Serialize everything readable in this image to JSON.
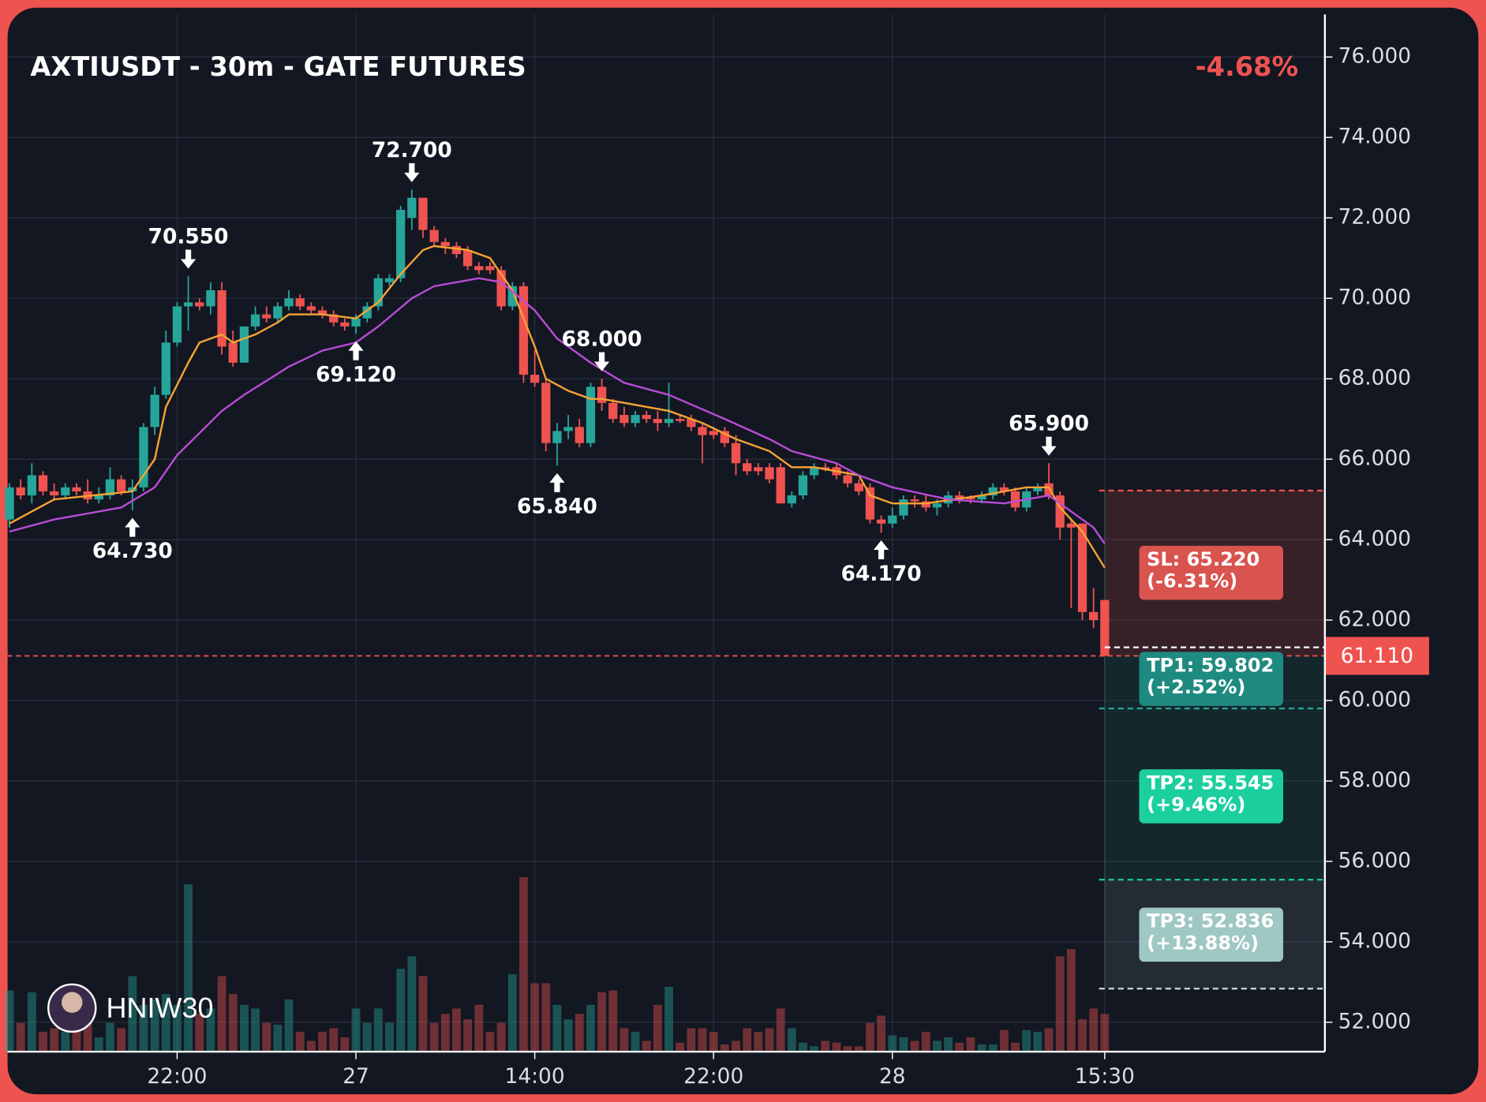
{
  "chart_data": {
    "type": "candlestick",
    "title": "AXTIUSDT - 30m - GATE FUTURES",
    "change_label": "-4.68%",
    "watermark": "HNIW30",
    "ylim": [
      51.27,
      77.06
    ],
    "yticks": [
      {
        "value": 52,
        "label": "52.000"
      },
      {
        "value": 54,
        "label": "54.000"
      },
      {
        "value": 56,
        "label": "56.000"
      },
      {
        "value": 58,
        "label": "58.000"
      },
      {
        "value": 60,
        "label": "60.000"
      },
      {
        "value": 62,
        "label": "62.000"
      },
      {
        "value": 64,
        "label": "64.000"
      },
      {
        "value": 66,
        "label": "66.000"
      },
      {
        "value": 68,
        "label": "68.000"
      },
      {
        "value": 70,
        "label": "70.000"
      },
      {
        "value": 72,
        "label": "72.000"
      },
      {
        "value": 74,
        "label": "74.000"
      },
      {
        "value": 76,
        "label": "76.000"
      }
    ],
    "xlim": [
      -0.17,
      117.7
    ],
    "xticks": [
      {
        "value": 15,
        "label": "22:00"
      },
      {
        "value": 31,
        "label": "27"
      },
      {
        "value": 47,
        "label": "14:00"
      },
      {
        "value": 63,
        "label": "22:00"
      },
      {
        "value": 79,
        "label": "28"
      },
      {
        "value": 98,
        "label": "15:30"
      }
    ],
    "grid": true,
    "up_color": "#26a69a",
    "down_color": "#ef5350",
    "open": [
      64.5,
      65.3,
      65.1,
      65.6,
      65.2,
      65.1,
      65.3,
      65.2,
      65.0,
      65.1,
      65.5,
      65.2,
      65.3,
      66.8,
      67.6,
      68.9,
      69.8,
      69.9,
      69.8,
      70.2,
      68.9,
      68.4,
      69.3,
      69.6,
      69.5,
      69.8,
      70.0,
      69.8,
      69.7,
      69.6,
      69.4,
      69.3,
      69.5,
      69.8,
      70.4,
      70.5,
      72.0,
      72.5,
      71.7,
      71.4,
      71.3,
      71.2,
      70.8,
      70.8,
      70.7,
      69.8,
      70.3,
      68.1,
      67.9,
      66.4,
      66.7,
      66.8,
      66.4,
      67.8,
      67.4,
      67.1,
      66.9,
      67.1,
      67.0,
      66.9,
      67.0,
      67.0,
      66.8,
      66.7,
      66.7,
      66.4,
      65.9,
      65.8,
      65.8,
      65.8,
      64.9,
      65.1,
      65.6,
      65.8,
      65.8,
      65.6,
      65.4,
      65.3,
      64.5,
      64.4,
      64.6,
      65.0,
      64.95,
      64.8,
      64.9,
      65.1,
      65.05,
      65.0,
      65.1,
      65.3,
      65.2,
      64.8,
      65.2,
      65.4,
      65.1,
      64.4,
      64.4,
      62.2,
      62.5
    ],
    "high": [
      65.4,
      65.5,
      65.9,
      65.7,
      65.4,
      65.4,
      65.4,
      65.5,
      65.3,
      65.8,
      65.6,
      65.5,
      66.9,
      67.8,
      69.2,
      69.9,
      70.55,
      70.0,
      70.4,
      70.4,
      69.2,
      69.3,
      69.8,
      69.8,
      69.9,
      70.2,
      70.1,
      69.9,
      69.8,
      69.7,
      69.5,
      69.6,
      69.9,
      70.6,
      70.6,
      72.3,
      72.7,
      72.5,
      71.8,
      71.5,
      71.4,
      71.3,
      70.9,
      70.9,
      70.8,
      70.4,
      70.4,
      68.7,
      68.0,
      66.9,
      67.1,
      67.0,
      67.9,
      68.0,
      67.5,
      67.3,
      67.2,
      67.2,
      67.2,
      67.9,
      67.1,
      67.1,
      66.9,
      66.8,
      66.8,
      66.6,
      66.0,
      65.9,
      65.9,
      65.9,
      65.2,
      65.7,
      65.9,
      65.9,
      65.9,
      65.7,
      65.5,
      65.4,
      64.6,
      64.8,
      65.1,
      65.1,
      65.1,
      65.0,
      65.2,
      65.2,
      65.1,
      65.2,
      65.4,
      65.4,
      65.3,
      65.3,
      65.4,
      65.9,
      65.2,
      64.5,
      64.4,
      62.8,
      62.5
    ],
    "low": [
      64.3,
      65.0,
      64.9,
      65.1,
      65.0,
      65.0,
      65.1,
      64.9,
      64.9,
      65.0,
      65.1,
      64.73,
      65.2,
      66.6,
      67.5,
      68.8,
      69.2,
      69.7,
      69.6,
      68.6,
      68.3,
      68.4,
      69.2,
      69.4,
      69.4,
      69.7,
      69.7,
      69.6,
      69.5,
      69.3,
      69.2,
      69.12,
      69.4,
      69.7,
      70.3,
      70.4,
      71.7,
      71.5,
      71.3,
      71.1,
      71.0,
      70.7,
      70.6,
      70.6,
      69.7,
      69.7,
      67.9,
      67.8,
      66.2,
      65.84,
      66.5,
      66.3,
      66.3,
      67.2,
      66.9,
      66.8,
      66.8,
      66.9,
      66.7,
      66.8,
      66.9,
      66.7,
      65.9,
      66.5,
      66.3,
      65.6,
      65.6,
      65.6,
      65.4,
      64.9,
      64.8,
      65.0,
      65.5,
      65.7,
      65.5,
      65.3,
      65.1,
      64.4,
      64.17,
      64.3,
      64.5,
      64.8,
      64.7,
      64.6,
      64.8,
      64.9,
      64.9,
      64.9,
      65.0,
      65.1,
      64.7,
      64.7,
      65.1,
      65.0,
      64.0,
      62.3,
      62.0,
      61.8,
      61.11
    ],
    "close": [
      65.3,
      65.1,
      65.6,
      65.2,
      65.1,
      65.3,
      65.2,
      65.0,
      65.1,
      65.5,
      65.2,
      65.3,
      66.8,
      67.6,
      68.9,
      69.8,
      69.9,
      69.8,
      70.2,
      68.8,
      68.4,
      69.3,
      69.6,
      69.5,
      69.8,
      70.0,
      69.8,
      69.7,
      69.6,
      69.4,
      69.3,
      69.5,
      69.8,
      70.5,
      70.5,
      72.2,
      72.5,
      71.7,
      71.4,
      71.3,
      71.1,
      70.8,
      70.7,
      70.7,
      69.8,
      70.3,
      68.1,
      67.9,
      66.4,
      66.7,
      66.8,
      66.4,
      67.8,
      67.4,
      67.0,
      66.9,
      67.1,
      67.0,
      66.9,
      67.0,
      66.95,
      66.8,
      66.6,
      66.6,
      66.4,
      65.9,
      65.7,
      65.7,
      65.5,
      64.9,
      65.1,
      65.6,
      65.8,
      65.75,
      65.6,
      65.4,
      65.2,
      64.5,
      64.4,
      64.6,
      65.0,
      64.95,
      64.8,
      64.9,
      65.1,
      65.0,
      65.0,
      65.1,
      65.3,
      65.2,
      64.8,
      65.2,
      65.3,
      65.1,
      64.3,
      64.3,
      62.2,
      62.0,
      61.11
    ],
    "volume_ylim": [
      0,
      100
    ],
    "volume": [
      34,
      16,
      33,
      11,
      13,
      11,
      21,
      18,
      8,
      16,
      13,
      42,
      26,
      29,
      32,
      26,
      93,
      21,
      24,
      42,
      32,
      26,
      24,
      16,
      15,
      29,
      11,
      6,
      11,
      13,
      8,
      24,
      16,
      24,
      16,
      46,
      53,
      42,
      16,
      21,
      24,
      18,
      26,
      11,
      16,
      43,
      97,
      38,
      38,
      26,
      18,
      21,
      26,
      33,
      34,
      13,
      11,
      6,
      26,
      36,
      5,
      13,
      13,
      11,
      4,
      6,
      13,
      11,
      13,
      24,
      13,
      5,
      3,
      6,
      5,
      3,
      3,
      16,
      20,
      9,
      8,
      6,
      11,
      6,
      8,
      5,
      8,
      4,
      4,
      12,
      5,
      12,
      11,
      13,
      53,
      57,
      18,
      24,
      21
    ],
    "series": [
      {
        "color": "#f7a334",
        "x": [
          0,
          4,
          11,
          13,
          14,
          16,
          17,
          19,
          20,
          22,
          24,
          25,
          28,
          31,
          33,
          35,
          37,
          38,
          41,
          43,
          45,
          47,
          48,
          50,
          52,
          53,
          55,
          59,
          62,
          65,
          68,
          70,
          72,
          76,
          77,
          79,
          82,
          87,
          91,
          93,
          94,
          96,
          98
        ],
        "values": [
          64.4,
          65.0,
          65.2,
          66.0,
          67.3,
          68.4,
          68.9,
          69.1,
          68.9,
          69.1,
          69.4,
          69.6,
          69.6,
          69.5,
          69.9,
          70.6,
          71.2,
          71.3,
          71.2,
          71.0,
          70.2,
          68.8,
          68.0,
          67.7,
          67.5,
          67.5,
          67.4,
          67.2,
          66.9,
          66.5,
          66.2,
          65.8,
          65.8,
          65.6,
          65.1,
          64.9,
          64.9,
          65.1,
          65.3,
          65.3,
          64.8,
          64.2,
          63.3
        ]
      },
      {
        "color": "#b94cd6",
        "x": [
          0,
          4,
          10,
          13,
          15,
          19,
          21,
          25,
          28,
          31,
          33,
          36,
          38,
          42,
          44,
          47,
          49,
          52,
          55,
          59,
          64,
          68,
          70,
          74,
          76,
          79,
          84,
          89,
          93,
          94,
          97,
          98
        ],
        "values": [
          64.2,
          64.5,
          64.8,
          65.3,
          66.1,
          67.2,
          67.6,
          68.3,
          68.7,
          68.9,
          69.3,
          70.0,
          70.3,
          70.5,
          70.4,
          69.7,
          69.0,
          68.4,
          67.9,
          67.6,
          67.0,
          66.5,
          66.2,
          65.9,
          65.6,
          65.3,
          65.0,
          64.9,
          65.1,
          64.9,
          64.3,
          63.9
        ]
      }
    ],
    "annotations": [
      {
        "kind": "high",
        "index": 16,
        "value": 70.55,
        "label": "70.550"
      },
      {
        "kind": "high",
        "index": 36,
        "value": 72.7,
        "label": "72.700"
      },
      {
        "kind": "high",
        "index": 53,
        "value": 68.0,
        "label": "68.000"
      },
      {
        "kind": "high",
        "index": 93,
        "value": 65.9,
        "label": "65.900"
      },
      {
        "kind": "low",
        "index": 11,
        "value": 64.73,
        "label": "64.730"
      },
      {
        "kind": "low",
        "index": 31,
        "value": 69.12,
        "label": "69.120"
      },
      {
        "kind": "low",
        "index": 49,
        "value": 65.84,
        "label": "65.840"
      },
      {
        "kind": "low",
        "index": 78,
        "value": 64.17,
        "label": "64.170"
      }
    ],
    "price": {
      "value": 61.11,
      "label": "61.110"
    },
    "levels": [
      {
        "value": 65.22,
        "label": "SL: 65.220",
        "change": "(-6.31%)",
        "color": "#d9534f"
      },
      {
        "value": 59.802,
        "label": "TP1: 59.802",
        "change": "(+2.52%)",
        "color": "#1f8a80"
      },
      {
        "value": 55.545,
        "label": "TP2: 55.545",
        "change": "(+9.46%)",
        "color": "#1ccf9f"
      },
      {
        "value": 52.836,
        "label": "TP3: 52.836",
        "change": "(+13.88%)",
        "color": "#9fc7c3"
      }
    ]
  }
}
